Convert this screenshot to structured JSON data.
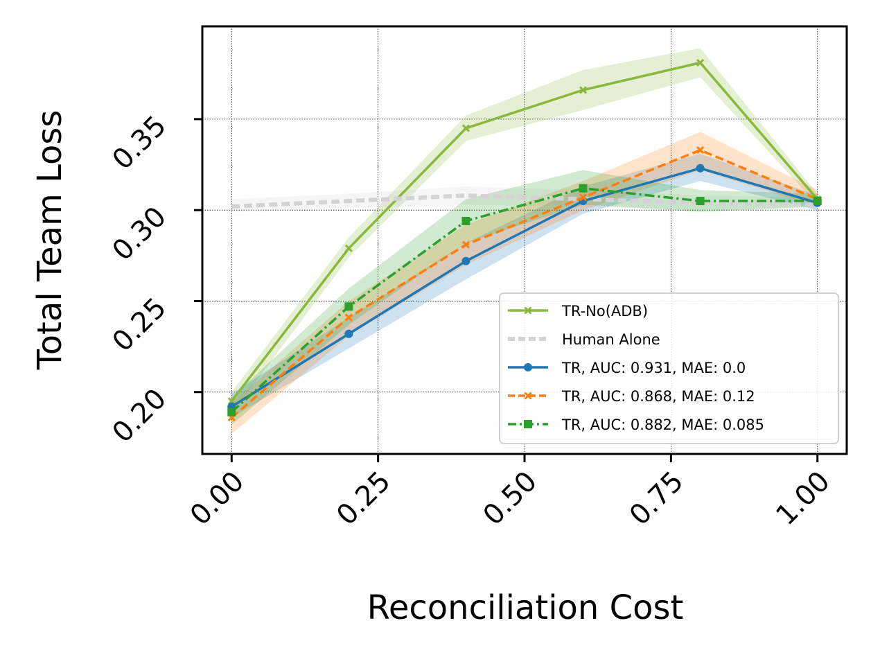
{
  "chart_data": {
    "type": "line",
    "xlabel": "Reconciliation Cost",
    "ylabel": "Total Team Loss",
    "xlim": [
      -0.05,
      1.05
    ],
    "ylim": [
      0.166,
      0.401
    ],
    "x_ticks": [
      "0.00",
      "0.25",
      "0.50",
      "0.75",
      "1.00"
    ],
    "y_ticks": [
      "0.20",
      "0.25",
      "0.30",
      "0.35"
    ],
    "x_tick_values": [
      0,
      0.25,
      0.5,
      0.75,
      1.0
    ],
    "y_tick_values": [
      0.2,
      0.25,
      0.3,
      0.35
    ],
    "grid": true,
    "legend_position": "lower right",
    "x": [
      0.0,
      0.2,
      0.4,
      0.6,
      0.8,
      1.0
    ],
    "series": [
      {
        "name": "TR-No(ADB)",
        "color": "#8ab83c",
        "marker": "x",
        "style": "solid",
        "values": [
          0.195,
          0.279,
          0.345,
          0.366,
          0.381,
          0.306
        ],
        "band_low": [
          0.188,
          0.274,
          0.338,
          0.355,
          0.373,
          0.303
        ],
        "band_high": [
          0.2,
          0.285,
          0.352,
          0.377,
          0.389,
          0.309
        ]
      },
      {
        "name": "Human Alone",
        "color": "#d3d3d3",
        "marker": "none",
        "style": "dashed",
        "values": [
          0.302,
          0.305,
          0.308,
          0.306,
          0.304,
          0.303
        ],
        "band_low": [
          0.299,
          0.301,
          0.303,
          0.302,
          0.3,
          0.299
        ],
        "band_high": [
          0.306,
          0.309,
          0.313,
          0.311,
          0.308,
          0.307
        ]
      },
      {
        "name": "TR, AUC: 0.931, MAE: 0.0",
        "color": "#1f77b4",
        "marker": "o",
        "style": "solid",
        "values": [
          0.192,
          0.232,
          0.272,
          0.305,
          0.323,
          0.304
        ],
        "band_low": [
          0.186,
          0.224,
          0.262,
          0.298,
          0.316,
          0.3
        ],
        "band_high": [
          0.199,
          0.241,
          0.282,
          0.313,
          0.331,
          0.308
        ]
      },
      {
        "name": "TR, AUC: 0.868, MAE: 0.12",
        "color": "#ff7f0e",
        "marker": "x",
        "style": "dashed",
        "values": [
          0.186,
          0.241,
          0.281,
          0.307,
          0.333,
          0.306
        ],
        "band_low": [
          0.177,
          0.231,
          0.27,
          0.3,
          0.322,
          0.302
        ],
        "band_high": [
          0.194,
          0.25,
          0.292,
          0.316,
          0.343,
          0.311
        ]
      },
      {
        "name": "TR, AUC: 0.882, MAE: 0.085",
        "color": "#2ca02c",
        "marker": "s",
        "style": "dashdot",
        "values": [
          0.189,
          0.247,
          0.294,
          0.312,
          0.305,
          0.305
        ],
        "band_low": [
          0.182,
          0.237,
          0.282,
          0.303,
          0.299,
          0.302
        ],
        "band_high": [
          0.197,
          0.257,
          0.306,
          0.322,
          0.311,
          0.309
        ]
      }
    ]
  }
}
